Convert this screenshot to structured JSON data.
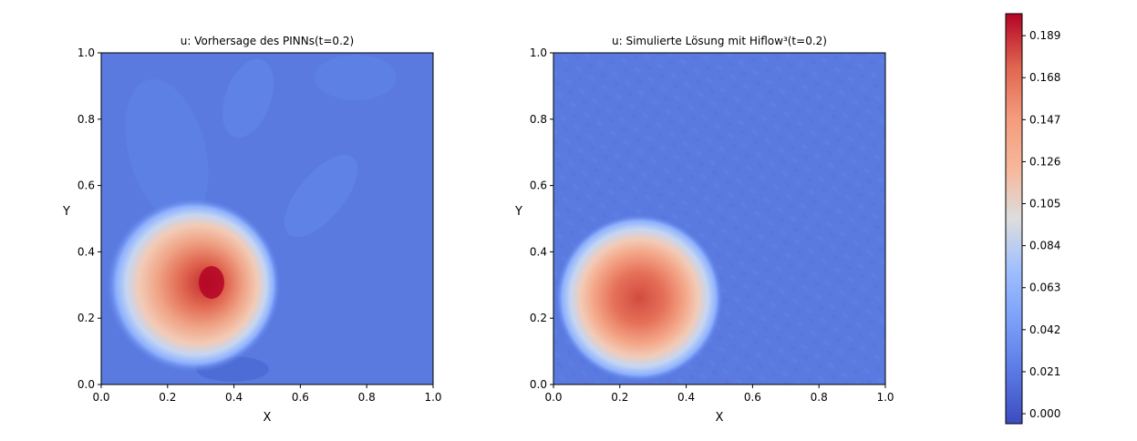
{
  "figure": {
    "colormap": "coolwarm",
    "colormap_low": "#3b4cc0",
    "colormap_mid": "#dddddd",
    "colormap_high": "#b40426"
  },
  "chart_data": [
    {
      "type": "heatmap",
      "subtype": "contourf",
      "title": "u: Vorhersage des PINNs(t=0.2)",
      "xlabel": "X",
      "ylabel": "Y",
      "xlim": [
        0.0,
        1.0
      ],
      "ylim": [
        0.0,
        1.0
      ],
      "xticks": [
        "0.0",
        "0.2",
        "0.4",
        "0.6",
        "0.8",
        "1.0"
      ],
      "yticks": [
        "0.0",
        "0.2",
        "0.4",
        "0.6",
        "0.8",
        "1.0"
      ],
      "background_value": 0.012,
      "features": [
        {
          "kind": "gaussian_peak",
          "center": [
            0.3,
            0.3
          ],
          "radius": 0.18,
          "peak": 0.195,
          "plateau_value": 0.15
        },
        {
          "kind": "low_background_blob",
          "center": [
            0.25,
            0.78
          ],
          "value": 0.02
        }
      ]
    },
    {
      "type": "heatmap",
      "subtype": "contourf",
      "title": "u: Simulierte Lösung mit Hiflow³(t=0.2)",
      "xlabel": "X",
      "ylabel": "Y",
      "xlim": [
        0.0,
        1.0
      ],
      "ylim": [
        0.0,
        1.0
      ],
      "xticks": [
        "0.0",
        "0.2",
        "0.4",
        "0.6",
        "0.8",
        "1.0"
      ],
      "yticks": [
        "0.0",
        "0.2",
        "0.4",
        "0.6",
        "0.8",
        "1.0"
      ],
      "background_value": 0.012,
      "features": [
        {
          "kind": "gaussian_peak",
          "center": [
            0.26,
            0.26
          ],
          "radius": 0.19,
          "peak": 0.175
        }
      ]
    }
  ],
  "colorbar": {
    "min": -0.005,
    "max": 0.2,
    "ticks": [
      "0.000",
      "0.021",
      "0.042",
      "0.063",
      "0.084",
      "0.105",
      "0.126",
      "0.147",
      "0.168",
      "0.189"
    ]
  }
}
